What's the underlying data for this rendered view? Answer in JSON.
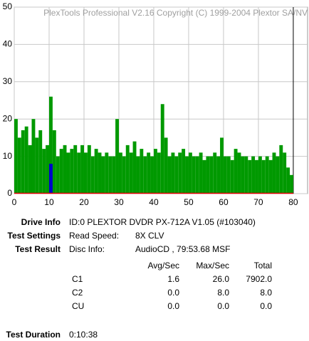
{
  "chart_data": {
    "type": "bar",
    "watermark": "PlexTools Professional V2.16 Copyright (C) 1999-2004 Plextor SA/NV",
    "x": [
      0,
      1,
      2,
      3,
      4,
      5,
      6,
      7,
      8,
      9,
      10,
      11,
      12,
      13,
      14,
      15,
      16,
      17,
      18,
      19,
      20,
      21,
      22,
      23,
      24,
      25,
      26,
      27,
      28,
      29,
      30,
      31,
      32,
      33,
      34,
      35,
      36,
      37,
      38,
      39,
      40,
      41,
      42,
      43,
      44,
      45,
      46,
      47,
      48,
      49,
      50,
      51,
      52,
      53,
      54,
      55,
      56,
      57,
      58,
      59,
      60,
      61,
      62,
      63,
      64,
      65,
      66,
      67,
      68,
      69,
      70,
      71,
      72,
      73,
      74,
      75,
      76,
      77,
      78,
      79
    ],
    "series": [
      {
        "color": "#009900",
        "values": [
          20,
          15,
          17,
          18,
          13,
          20,
          15,
          17,
          12,
          13,
          26,
          17,
          10,
          12,
          13,
          11,
          12,
          13,
          11,
          13,
          11,
          13,
          10,
          12,
          11,
          10,
          11,
          10,
          10,
          20,
          11,
          10,
          13,
          11,
          14,
          10,
          12,
          10,
          11,
          10,
          12,
          11,
          24,
          15,
          10,
          11,
          10,
          11,
          12,
          10,
          11,
          10,
          10,
          11,
          9,
          10,
          10,
          11,
          10,
          15,
          10,
          10,
          9,
          12,
          11,
          10,
          10,
          9,
          10,
          9,
          10,
          9,
          10,
          9,
          11,
          10,
          13,
          11,
          7,
          5
        ]
      },
      {
        "color": "#0000cc",
        "values": [
          0,
          0,
          0,
          0,
          0,
          0,
          0,
          0,
          0,
          0,
          8,
          0,
          0,
          0,
          0,
          0,
          0,
          0,
          0,
          0,
          0,
          0,
          0,
          0,
          0,
          0,
          0,
          0,
          0,
          0,
          0,
          0,
          0,
          0,
          0,
          0,
          0,
          0,
          0,
          0,
          0,
          0,
          0,
          0,
          0,
          0,
          0,
          0,
          0,
          0,
          0,
          0,
          0,
          0,
          0,
          0,
          0,
          0,
          0,
          0,
          0,
          0,
          0,
          0,
          0,
          0,
          0,
          0,
          0,
          0,
          0,
          0,
          0,
          0,
          0,
          0,
          0,
          0,
          0,
          0
        ]
      }
    ],
    "xlim": [
      0,
      84.3
    ],
    "xticks": [
      0,
      10,
      20,
      30,
      40,
      50,
      60,
      70,
      80
    ],
    "ylim": [
      0,
      50
    ],
    "yticks": [
      0,
      10,
      20,
      30,
      40,
      50
    ],
    "grid": true
  },
  "info": [
    {
      "label": "Drive Info",
      "value": "ID:0 PLEXTOR DVDR PX-712A V1.05 (#103040)"
    },
    {
      "label": "Test Settings",
      "key": "Read Speed:",
      "value": "8X CLV"
    },
    {
      "label": "Test Result",
      "key": "Disc Info:",
      "value": "AudioCD , 79:53.68 MSF"
    }
  ],
  "results": {
    "columns": [
      "Avg/Sec",
      "Max/Sec",
      "Total"
    ],
    "rows": [
      {
        "name": "C1",
        "values": [
          "1.6",
          "26.0",
          "7902.0"
        ]
      },
      {
        "name": "C2",
        "values": [
          "0.0",
          "8.0",
          "8.0"
        ]
      },
      {
        "name": "CU",
        "values": [
          "0.0",
          "0.0",
          "0.0"
        ]
      }
    ]
  },
  "duration": {
    "label": "Test Duration",
    "value": "0:10:38"
  }
}
